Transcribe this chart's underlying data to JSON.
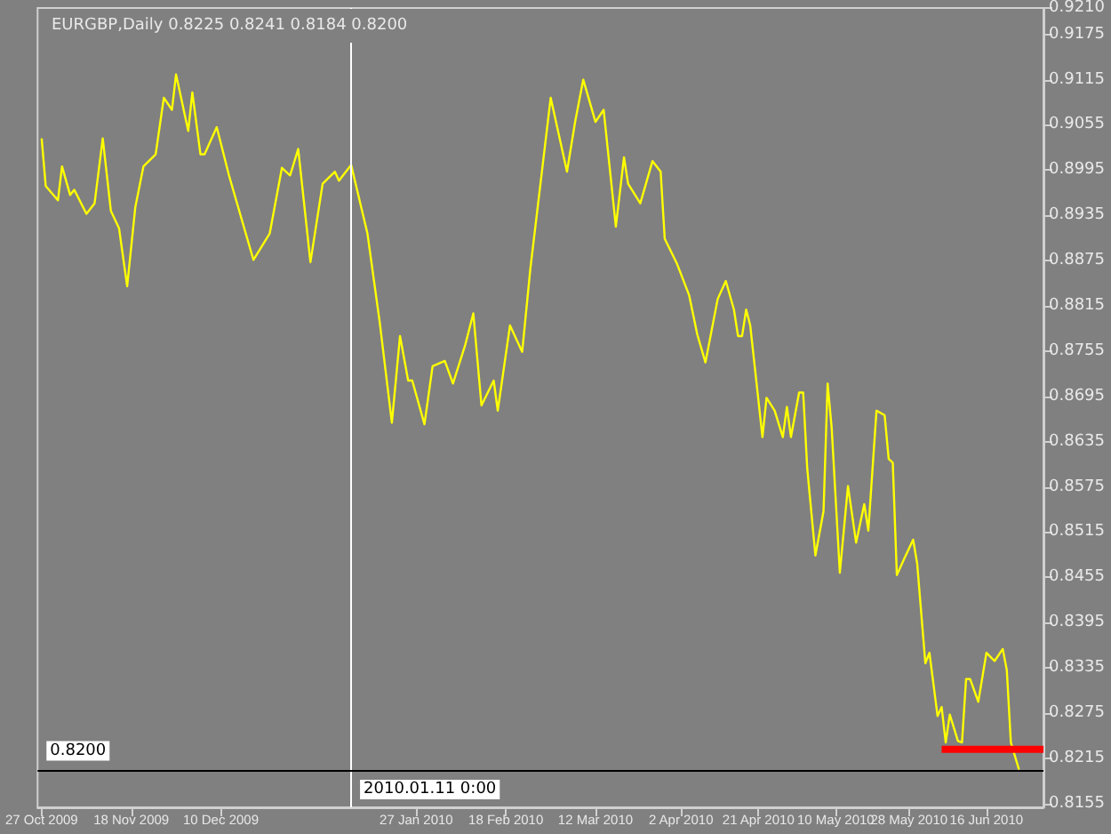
{
  "chart_data": {
    "type": "line",
    "title": "EURGBP,Daily 0.8225 0.8241 0.8184 0.8200",
    "xlim": [
      "2009-10-26",
      "2010-06-30"
    ],
    "xticks": [
      {
        "value": "2009-10-27",
        "label": "27 Oct 2009"
      },
      {
        "value": "2009-11-18",
        "label": "18 Nov 2009"
      },
      {
        "value": "2009-12-10",
        "label": "10 Dec 2009"
      },
      {
        "value": "2010-01-27",
        "label": "27 Jan 2010"
      },
      {
        "value": "2010-02-18",
        "label": "18 Feb 2010"
      },
      {
        "value": "2010-03-12",
        "label": "12 Mar 2010"
      },
      {
        "value": "2010-04-02",
        "label": "2 Apr 2010"
      },
      {
        "value": "2010-04-21",
        "label": "21 Apr 2010"
      },
      {
        "value": "2010-05-10",
        "label": "10 May 2010"
      },
      {
        "value": "2010-05-28",
        "label": "28 May 2010"
      },
      {
        "value": "2010-06-16",
        "label": "16 Jun 2010"
      }
    ],
    "ylim": [
      0.815,
      0.921
    ],
    "yticks": [
      {
        "value": 0.921,
        "label": "0.9210"
      },
      0.9175,
      0.9115,
      0.9055,
      0.8995,
      0.8935,
      0.8875,
      0.8815,
      0.8755,
      0.8695,
      0.8635,
      0.8575,
      0.8515,
      0.8455,
      0.8395,
      0.8335,
      0.8275,
      0.8215,
      0.8155
    ],
    "grid": false,
    "marker": "none",
    "line_style": "solid",
    "series": [
      {
        "color": "#ffff00",
        "x": [
          "2009-10-27",
          "2009-10-28",
          "2009-10-31",
          "2009-11-01",
          "2009-11-03",
          "2009-11-04",
          "2009-11-07",
          "2009-11-09",
          "2009-11-11",
          "2009-11-13",
          "2009-11-15",
          "2009-11-17",
          "2009-11-19",
          "2009-11-21",
          "2009-11-24",
          "2009-11-26",
          "2009-11-28",
          "2009-11-29",
          "2009-12-02",
          "2009-12-03",
          "2009-12-05",
          "2009-12-06",
          "2009-12-09",
          "2009-12-12",
          "2009-12-18",
          "2009-12-22",
          "2009-12-25",
          "2009-12-27",
          "2009-12-29",
          "2010-01-01",
          "2010-01-04",
          "2010-01-07",
          "2010-01-08",
          "2010-01-11",
          "2010-01-15",
          "2010-01-18",
          "2010-01-21",
          "2010-01-23",
          "2010-01-25",
          "2010-01-26",
          "2010-01-29",
          "2010-01-31",
          "2010-02-03",
          "2010-02-05",
          "2010-02-08",
          "2010-02-10",
          "2010-02-12",
          "2010-02-15",
          "2010-02-16",
          "2010-02-19",
          "2010-02-22",
          "2010-02-24",
          "2010-03-01",
          "2010-03-05",
          "2010-03-07",
          "2010-03-09",
          "2010-03-12",
          "2010-03-14",
          "2010-03-17",
          "2010-03-19",
          "2010-03-20",
          "2010-03-23",
          "2010-03-26",
          "2010-03-28",
          "2010-03-29",
          "2010-04-01",
          "2010-04-04",
          "2010-04-06",
          "2010-04-08",
          "2010-04-11",
          "2010-04-13",
          "2010-04-15",
          "2010-04-16",
          "2010-04-17",
          "2010-04-18",
          "2010-04-19",
          "2010-04-22",
          "2010-04-23",
          "2010-04-25",
          "2010-04-27",
          "2010-04-28",
          "2010-04-29",
          "2010-05-01",
          "2010-05-02",
          "2010-05-03",
          "2010-05-05",
          "2010-05-07",
          "2010-05-08",
          "2010-05-09",
          "2010-05-11",
          "2010-05-13",
          "2010-05-15",
          "2010-05-17",
          "2010-05-18",
          "2010-05-20",
          "2010-05-22",
          "2010-05-23",
          "2010-05-24",
          "2010-05-25",
          "2010-05-27",
          "2010-05-29",
          "2010-05-30",
          "2010-06-01",
          "2010-06-02",
          "2010-06-04",
          "2010-06-05",
          "2010-06-06",
          "2010-06-07",
          "2010-06-09",
          "2010-06-10",
          "2010-06-11",
          "2010-06-12",
          "2010-06-14",
          "2010-06-16",
          "2010-06-18",
          "2010-06-20",
          "2010-06-21",
          "2010-06-22",
          "2010-06-24"
        ],
        "values": [
          0.9037,
          0.8974,
          0.8955,
          0.9,
          0.8962,
          0.8969,
          0.8937,
          0.8951,
          0.9037,
          0.8941,
          0.8918,
          0.8841,
          0.8946,
          0.9,
          0.9016,
          0.9091,
          0.9075,
          0.9122,
          0.9047,
          0.9098,
          0.9016,
          0.9016,
          0.9052,
          0.8988,
          0.8876,
          0.8911,
          0.8998,
          0.8988,
          0.9023,
          0.8873,
          0.8977,
          0.8993,
          0.8981,
          0.9002,
          0.8911,
          0.8794,
          0.866,
          0.8775,
          0.8716,
          0.8716,
          0.8658,
          0.8735,
          0.8742,
          0.8712,
          0.8763,
          0.8805,
          0.8683,
          0.8716,
          0.8676,
          0.8789,
          0.8754,
          0.8864,
          0.9091,
          0.8993,
          0.9059,
          0.9115,
          0.9059,
          0.9075,
          0.892,
          0.9012,
          0.8977,
          0.8951,
          0.9007,
          0.8993,
          0.8904,
          0.8871,
          0.8829,
          0.8777,
          0.874,
          0.8824,
          0.8848,
          0.881,
          0.8775,
          0.8775,
          0.881,
          0.8789,
          0.8641,
          0.8693,
          0.8676,
          0.8641,
          0.8681,
          0.8641,
          0.87,
          0.87,
          0.8599,
          0.8484,
          0.8543,
          0.8712,
          0.8653,
          0.8461,
          0.8576,
          0.8501,
          0.8552,
          0.8517,
          0.8676,
          0.867,
          0.8612,
          0.8607,
          0.8458,
          0.8482,
          0.8505,
          0.8473,
          0.8341,
          0.8355,
          0.8271,
          0.8283,
          0.8236,
          0.8273,
          0.8238,
          0.8236,
          0.832,
          0.832,
          0.829,
          0.8355,
          0.8344,
          0.836,
          0.8332,
          0.8236,
          0.82
        ]
      },
      {
        "color": "#ff0000",
        "x": [
          "2010-06-05",
          "2010-06-30"
        ],
        "values": [
          0.8227,
          0.8227
        ]
      }
    ],
    "ref_lines": [
      {
        "axis": "x",
        "value": "2010-01-11",
        "label": "2010.01.11 0:00",
        "color": "#ffffff"
      },
      {
        "axis": "y",
        "value": 0.82,
        "label": "0.8200",
        "color": "#000000"
      }
    ]
  }
}
